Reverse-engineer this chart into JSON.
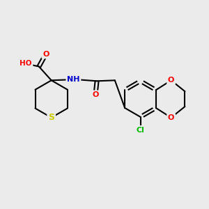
{
  "background_color": "#ebebeb",
  "bond_color": "#000000",
  "atom_colors": {
    "O": "#ff0000",
    "N": "#0000cd",
    "S": "#cccc00",
    "Cl": "#00bb00",
    "C": "#000000"
  },
  "figsize": [
    3.0,
    3.0
  ],
  "dpi": 100
}
